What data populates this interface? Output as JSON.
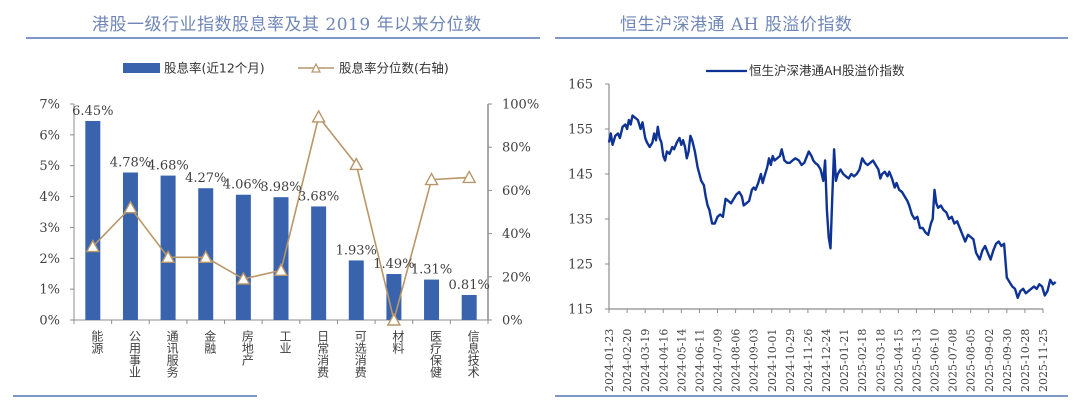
{
  "colors": {
    "bar": "#3a63ad",
    "percentile_line": "#b99668",
    "index_line": "#0e3394",
    "axis": "#8c8c8c",
    "title": "#6f86b8",
    "rule": "#7f98c8"
  },
  "chart_data": [
    {
      "type": "bar",
      "title": "港股一级行业指数股息率及其 2019 年以来分位数",
      "categories": [
        "能源",
        "公用事业",
        "通讯服务",
        "金融",
        "房地产",
        "工业",
        "日常消费",
        "可选消费",
        "材料",
        "医疗保健",
        "信息技术"
      ],
      "series": [
        {
          "name": "股息率(近12个月)",
          "kind": "bar",
          "axis": "left",
          "values": [
            6.45,
            4.78,
            4.68,
            4.27,
            4.06,
            3.98,
            3.68,
            1.93,
            1.49,
            1.31,
            0.81
          ],
          "labels": [
            "6.45%",
            "4.78%",
            "4.68%",
            "4.27%",
            "4.06%",
            "3.98%",
            "3.68%",
            "1.93%",
            "1.49%",
            "1.31%",
            "0.81%"
          ]
        },
        {
          "name": "股息率分位数(右轴)",
          "kind": "line",
          "marker": "triangle",
          "axis": "right",
          "values": [
            34,
            52,
            29,
            29,
            19,
            23,
            94,
            72,
            0,
            65,
            66
          ]
        }
      ],
      "ylim": [
        0,
        7
      ],
      "y_ticks": [
        "0%",
        "1%",
        "2%",
        "3%",
        "4%",
        "5%",
        "6%",
        "7%"
      ],
      "y2lim": [
        0,
        100
      ],
      "y2_ticks": [
        "0%",
        "20%",
        "40%",
        "60%",
        "80%",
        "100%"
      ],
      "legend": [
        "股息率(近12个月)",
        "股息率分位数(右轴)"
      ],
      "legend_position": "top",
      "grid": false
    },
    {
      "type": "line",
      "title": "恒生沪深港通 AH 股溢价指数",
      "series_name": "恒生沪深港通AH股溢价指数",
      "legend_position": "top",
      "ylim": [
        115,
        165
      ],
      "y_ticks": [
        "115",
        "125",
        "135",
        "145",
        "155",
        "165"
      ],
      "x_ticks": [
        "2024-01-23",
        "2024-02-20",
        "2024-03-19",
        "2024-04-16",
        "2024-05-14",
        "2024-06-11",
        "2024-07-09",
        "2024-08-06",
        "2024-09-03",
        "2024-10-01",
        "2024-10-29",
        "2024-11-26",
        "2024-12-24",
        "2025-01-21",
        "2025-02-18",
        "2025-03-18",
        "2025-04-15",
        "2025-05-13",
        "2025-06-10",
        "2025-07-08",
        "2025-08-05",
        "2025-09-02",
        "2025-09-30",
        "2025-10-28",
        "2025-11-25"
      ],
      "grid": false,
      "points": [
        [
          0,
          152
        ],
        [
          0.1,
          154
        ],
        [
          0.2,
          151.5
        ],
        [
          0.35,
          153.5
        ],
        [
          0.5,
          154
        ],
        [
          0.6,
          153
        ],
        [
          0.75,
          155.5
        ],
        [
          0.9,
          156
        ],
        [
          1.0,
          155
        ],
        [
          1.1,
          157
        ],
        [
          1.2,
          156
        ],
        [
          1.3,
          158
        ],
        [
          1.45,
          157.5
        ],
        [
          1.6,
          157
        ],
        [
          1.75,
          155
        ],
        [
          1.85,
          156.5
        ],
        [
          2.0,
          153
        ],
        [
          2.1,
          152
        ],
        [
          2.25,
          151
        ],
        [
          2.4,
          152
        ],
        [
          2.5,
          154
        ],
        [
          2.6,
          152.5
        ],
        [
          2.7,
          155.5
        ],
        [
          2.8,
          153
        ],
        [
          2.9,
          152
        ],
        [
          3.0,
          149
        ],
        [
          3.1,
          148
        ],
        [
          3.2,
          150
        ],
        [
          3.35,
          149.5
        ],
        [
          3.5,
          151
        ],
        [
          3.6,
          150.5
        ],
        [
          3.75,
          152
        ],
        [
          3.9,
          153
        ],
        [
          4.0,
          151.5
        ],
        [
          4.1,
          152.5
        ],
        [
          4.2,
          151
        ],
        [
          4.3,
          148.5
        ],
        [
          4.4,
          150
        ],
        [
          4.5,
          153.5
        ],
        [
          4.6,
          152.5
        ],
        [
          4.75,
          150
        ],
        [
          4.9,
          146.5
        ],
        [
          5.0,
          145
        ],
        [
          5.1,
          143.5
        ],
        [
          5.25,
          142.5
        ],
        [
          5.35,
          140
        ],
        [
          5.45,
          138
        ],
        [
          5.55,
          137
        ],
        [
          5.7,
          134
        ],
        [
          5.85,
          134
        ],
        [
          6.0,
          135.5
        ],
        [
          6.15,
          136
        ],
        [
          6.3,
          135.5
        ],
        [
          6.45,
          139.5
        ],
        [
          6.6,
          139
        ],
        [
          6.75,
          138.5
        ],
        [
          6.9,
          139.5
        ],
        [
          7.05,
          140.5
        ],
        [
          7.2,
          141
        ],
        [
          7.35,
          140
        ],
        [
          7.45,
          138
        ],
        [
          7.6,
          138.5
        ],
        [
          7.75,
          139
        ],
        [
          7.9,
          141.5
        ],
        [
          8.0,
          142
        ],
        [
          8.1,
          141.5
        ],
        [
          8.25,
          143
        ],
        [
          8.4,
          145
        ],
        [
          8.5,
          143
        ],
        [
          8.6,
          144.5
        ],
        [
          8.75,
          146.5
        ],
        [
          8.85,
          148.5
        ],
        [
          8.95,
          147
        ],
        [
          9.05,
          149
        ],
        [
          9.15,
          148
        ],
        [
          9.3,
          148.5
        ],
        [
          9.45,
          149
        ],
        [
          9.55,
          150.5
        ],
        [
          9.7,
          148
        ],
        [
          9.85,
          147.5
        ],
        [
          10.0,
          147.5
        ],
        [
          10.15,
          148
        ],
        [
          10.3,
          148.5
        ],
        [
          10.5,
          148
        ],
        [
          10.65,
          147
        ],
        [
          10.8,
          147.5
        ],
        [
          10.95,
          149
        ],
        [
          11.05,
          150
        ],
        [
          11.2,
          149
        ],
        [
          11.3,
          148
        ],
        [
          11.4,
          147.5
        ],
        [
          11.55,
          147
        ],
        [
          11.7,
          146
        ],
        [
          11.85,
          143.5
        ],
        [
          11.95,
          148
        ],
        [
          12.05,
          137
        ],
        [
          12.15,
          131
        ],
        [
          12.25,
          128.5
        ],
        [
          12.35,
          140
        ],
        [
          12.45,
          150.5
        ],
        [
          12.55,
          143.5
        ],
        [
          12.65,
          145
        ],
        [
          12.8,
          146
        ],
        [
          12.95,
          145
        ],
        [
          13.1,
          144.5
        ],
        [
          13.25,
          144
        ],
        [
          13.4,
          145
        ],
        [
          13.55,
          144.5
        ],
        [
          13.7,
          145
        ],
        [
          13.85,
          146
        ],
        [
          14.0,
          148.5
        ],
        [
          14.15,
          147.5
        ],
        [
          14.3,
          147
        ],
        [
          14.45,
          147.5
        ],
        [
          14.6,
          148
        ],
        [
          14.75,
          147
        ],
        [
          14.9,
          146
        ],
        [
          15.0,
          144
        ],
        [
          15.1,
          145
        ],
        [
          15.25,
          145.5
        ],
        [
          15.4,
          144.5
        ],
        [
          15.5,
          145.5
        ],
        [
          15.65,
          144
        ],
        [
          15.8,
          142
        ],
        [
          15.9,
          143
        ],
        [
          16.05,
          141.5
        ],
        [
          16.2,
          141
        ],
        [
          16.35,
          140
        ],
        [
          16.5,
          139
        ],
        [
          16.6,
          138
        ],
        [
          16.75,
          136
        ],
        [
          16.9,
          135
        ],
        [
          17.05,
          135.5
        ],
        [
          17.2,
          133
        ],
        [
          17.35,
          133
        ],
        [
          17.5,
          132
        ],
        [
          17.65,
          131.5
        ],
        [
          17.8,
          134
        ],
        [
          17.9,
          135
        ],
        [
          18.0,
          141.5
        ],
        [
          18.1,
          138.5
        ],
        [
          18.2,
          137.5
        ],
        [
          18.35,
          138
        ],
        [
          18.5,
          137
        ],
        [
          18.65,
          136.5
        ],
        [
          18.8,
          135
        ],
        [
          18.95,
          135.5
        ],
        [
          19.1,
          134
        ],
        [
          19.25,
          134.5
        ],
        [
          19.4,
          133
        ],
        [
          19.55,
          131.5
        ],
        [
          19.7,
          130
        ],
        [
          19.85,
          131.5
        ],
        [
          20.0,
          131
        ],
        [
          20.15,
          130.5
        ],
        [
          20.3,
          127.5
        ],
        [
          20.5,
          126
        ],
        [
          20.65,
          128
        ],
        [
          20.8,
          129
        ],
        [
          20.95,
          127.5
        ],
        [
          21.1,
          126
        ],
        [
          21.25,
          128
        ],
        [
          21.4,
          129.5
        ],
        [
          21.55,
          130
        ],
        [
          21.7,
          129
        ],
        [
          21.85,
          129.5
        ],
        [
          22.0,
          122
        ],
        [
          22.15,
          121
        ],
        [
          22.3,
          120
        ],
        [
          22.45,
          119.5
        ],
        [
          22.6,
          117.5
        ],
        [
          22.75,
          119
        ],
        [
          22.9,
          119.5
        ],
        [
          23.05,
          118.5
        ],
        [
          23.2,
          119
        ],
        [
          23.35,
          119.5
        ],
        [
          23.5,
          120
        ],
        [
          23.65,
          119.5
        ],
        [
          23.8,
          120.5
        ],
        [
          23.95,
          120
        ],
        [
          24.1,
          118
        ],
        [
          24.25,
          119
        ],
        [
          24.4,
          121.5
        ],
        [
          24.55,
          120.5
        ],
        [
          24.7,
          121
        ]
      ]
    }
  ]
}
